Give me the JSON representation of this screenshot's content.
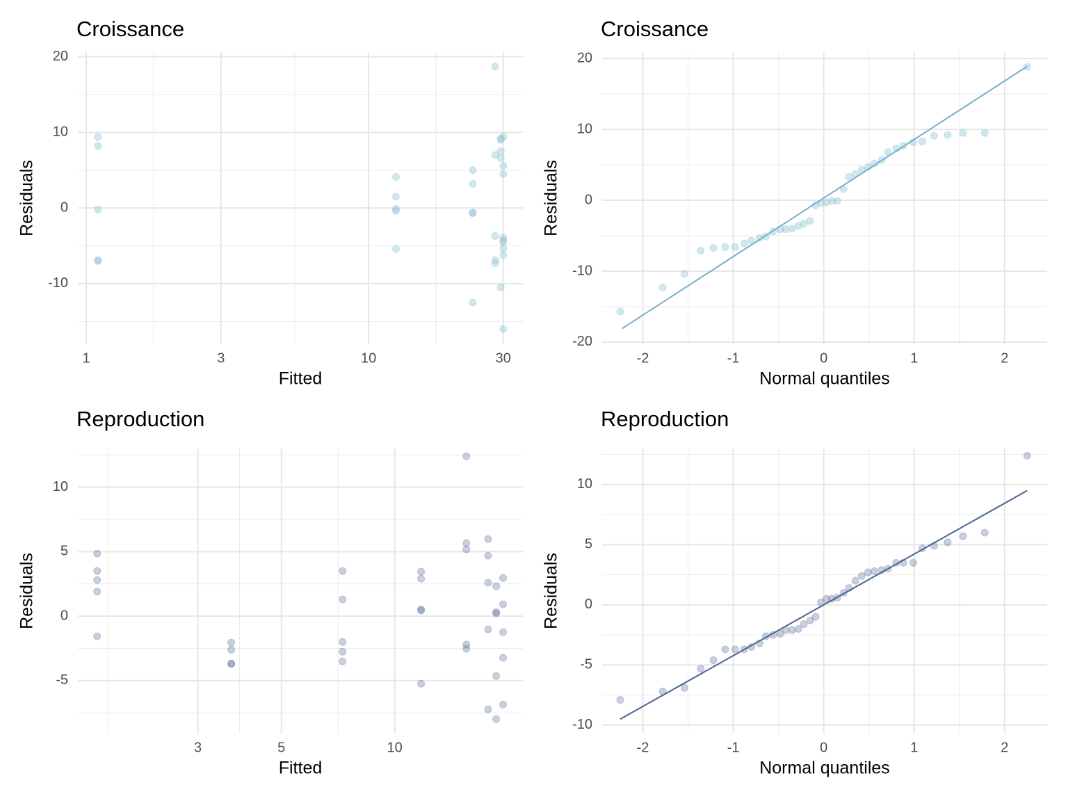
{
  "chart_data": [
    {
      "type": "scatter",
      "title": "Croissance",
      "x_label": "Fitted",
      "y_label": "Residuals",
      "xscale": "log",
      "color": "#8fc3d3",
      "alpha": 0.4,
      "x": [
        1.1,
        1.1,
        1.1,
        1.1,
        1.1,
        12.5,
        12.5,
        12.5,
        12.5,
        12.5,
        23.4,
        23.4,
        23.4,
        23.4,
        23.4,
        28.1,
        28.1,
        28.1,
        28.1,
        28.1,
        29.4,
        29.4,
        29.4,
        29.4,
        29.4,
        30,
        30,
        30,
        30,
        30,
        30,
        30,
        30,
        30
      ],
      "y": [
        9.4,
        8.2,
        -0.2,
        -6.9,
        -7,
        4.1,
        1.5,
        -0.1,
        -0.4,
        -5.4,
        5,
        3.2,
        -0.6,
        -0.7,
        -12.5,
        18.7,
        7,
        -3.7,
        -6.9,
        -7.3,
        9.2,
        9,
        7.5,
        6.6,
        -10.5,
        9.4,
        5.6,
        4.5,
        -3.9,
        -4.3,
        -4.5,
        -5.3,
        -6.2,
        -16
      ],
      "xlim": [
        0.934,
        35.2
      ],
      "ylim": [
        -18,
        20.6
      ],
      "xticks": [
        1,
        3,
        10,
        30
      ],
      "yticks": [
        -10,
        0,
        10,
        20
      ],
      "x_minor_grid": [
        1.73,
        5.48,
        17.3
      ],
      "y_minor_grid": [
        -15,
        -5,
        5,
        15
      ],
      "grid": true
    },
    {
      "type": "scatter",
      "title": "Croissance",
      "x_label": "Normal quantiles",
      "y_label": "Residuals",
      "color": "#8fc3d3",
      "alpha": 0.4,
      "line_color": "#74b0c4",
      "x": [
        -2.25,
        -1.78,
        -1.54,
        -1.36,
        -1.22,
        -1.09,
        -0.98,
        -0.88,
        -0.8,
        -0.71,
        -0.64,
        -0.56,
        -0.48,
        -0.42,
        -0.35,
        -0.28,
        -0.22,
        -0.15,
        -0.09,
        -0.03,
        0.03,
        0.09,
        0.15,
        0.22,
        0.28,
        0.35,
        0.42,
        0.49,
        0.56,
        0.64,
        0.71,
        0.8,
        0.88,
        0.99,
        1.09,
        1.22,
        1.37,
        1.54,
        1.78,
        2.25
      ],
      "y": [
        -15.7,
        -12.3,
        -10.4,
        -7.1,
        -6.7,
        -6.6,
        -6.6,
        -6.1,
        -5.7,
        -5.3,
        -5.1,
        -4.4,
        -4.1,
        -4.1,
        -4,
        -3.6,
        -3.3,
        -2.9,
        -0.7,
        -0.4,
        -0.3,
        -0.1,
        -0.1,
        1.6,
        3.3,
        3.7,
        4.3,
        4.7,
        5.2,
        5.7,
        6.8,
        7.3,
        7.7,
        8.2,
        8.3,
        9.1,
        9.2,
        9.5,
        9.5,
        18.8
      ],
      "line": {
        "x": [
          -2.23,
          2.25
        ],
        "y": [
          -18.1,
          18.9
        ]
      },
      "xlim": [
        -2.45,
        2.47
      ],
      "ylim": [
        -20.3,
        20.9
      ],
      "xticks": [
        -2,
        -1,
        0,
        1,
        2
      ],
      "yticks": [
        -20,
        -10,
        0,
        10,
        20
      ],
      "x_minor_grid": [
        -1.5,
        -0.5,
        0.5,
        1.5
      ],
      "y_minor_grid": [
        -15,
        -5,
        5,
        15
      ],
      "grid": true
    },
    {
      "type": "scatter",
      "title": "Reproduction",
      "x_label": "Fitted",
      "y_label": "Residuals",
      "xscale": "log",
      "color": "#4a6491",
      "alpha": 0.3,
      "x": [
        1.62,
        1.62,
        1.62,
        1.62,
        1.62,
        3.68,
        3.68,
        3.68,
        3.68,
        7.27,
        7.27,
        7.27,
        7.27,
        7.27,
        11.75,
        11.75,
        11.75,
        11.75,
        11.75,
        15.5,
        15.5,
        15.5,
        15.5,
        15.5,
        17.7,
        17.7,
        17.7,
        17.7,
        17.7,
        18.6,
        18.6,
        18.6,
        18.6,
        18.6,
        19.4,
        19.4,
        19.4,
        19.4,
        19.4
      ],
      "y": [
        4.85,
        3.5,
        2.8,
        1.9,
        -1.56,
        -2.05,
        -2.6,
        -3.67,
        -3.7,
        3.5,
        1.3,
        -2,
        -2.75,
        -3.5,
        3.45,
        2.9,
        0.54,
        0.43,
        -5.23,
        12.4,
        5.66,
        5.18,
        -2.2,
        -2.53,
        5.98,
        4.69,
        2.59,
        -1.02,
        -7.22,
        2.32,
        0.32,
        0.22,
        -4.64,
        -7.98,
        2.96,
        0.92,
        -1.24,
        -3.23,
        -6.85
      ],
      "xlim": [
        1.44,
        21.9
      ],
      "ylim": [
        -9.1,
        13
      ],
      "xticks": [
        3,
        5,
        10
      ],
      "yticks": [
        -5,
        0,
        5,
        10
      ],
      "x_minor_grid": [
        1.73,
        3.87,
        7.07
      ],
      "y_minor_grid": [
        -7.5,
        -2.5,
        2.5,
        7.5,
        12.5
      ],
      "grid": true
    },
    {
      "type": "scatter",
      "title": "Reproduction",
      "x_label": "Normal quantiles",
      "y_label": "Residuals",
      "color": "#4a6491",
      "alpha": 0.3,
      "line_color": "#4a6491",
      "x": [
        -2.25,
        -1.78,
        -1.54,
        -1.36,
        -1.22,
        -1.09,
        -0.98,
        -0.88,
        -0.8,
        -0.71,
        -0.64,
        -0.56,
        -0.48,
        -0.42,
        -0.35,
        -0.28,
        -0.22,
        -0.15,
        -0.09,
        -0.03,
        0.03,
        0.09,
        0.15,
        0.22,
        0.28,
        0.35,
        0.42,
        0.49,
        0.56,
        0.64,
        0.71,
        0.8,
        0.88,
        0.99,
        1.09,
        1.22,
        1.37,
        1.54,
        1.78,
        2.25
      ],
      "y": [
        -7.9,
        -7.2,
        -6.9,
        -5.3,
        -4.6,
        -3.7,
        -3.7,
        -3.7,
        -3.5,
        -3.2,
        -2.6,
        -2.5,
        -2.4,
        -2.1,
        -2.1,
        -2,
        -1.6,
        -1.3,
        -1,
        0.2,
        0.5,
        0.5,
        0.6,
        1,
        1.4,
        2,
        2.4,
        2.7,
        2.8,
        2.9,
        3,
        3.5,
        3.5,
        3.5,
        4.7,
        4.9,
        5.2,
        5.7,
        6,
        12.4
      ],
      "line": {
        "x": [
          -2.25,
          2.25
        ],
        "y": [
          -9.5,
          9.5
        ]
      },
      "xlim": [
        -2.45,
        2.47
      ],
      "ylim": [
        -10.7,
        13
      ],
      "xticks": [
        -2,
        -1,
        0,
        1,
        2
      ],
      "yticks": [
        -10,
        -5,
        0,
        5,
        10
      ],
      "x_minor_grid": [
        -1.5,
        -0.5,
        0.5,
        1.5
      ],
      "y_minor_grid": [
        -7.5,
        -2.5,
        2.5,
        7.5,
        12.5
      ],
      "grid": true
    }
  ]
}
